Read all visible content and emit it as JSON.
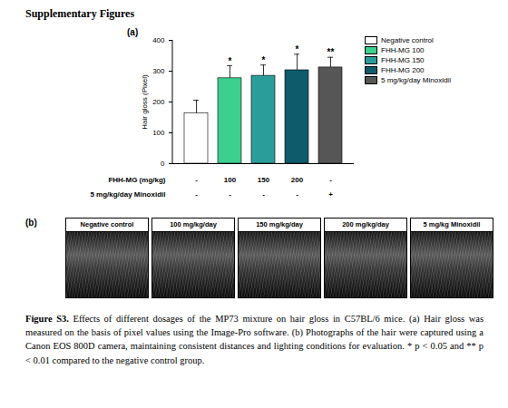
{
  "heading": "Supplementary Figures",
  "chart_data": {
    "type": "bar",
    "panel_label": "(a)",
    "ylabel": "Hair gloss (Pixel)",
    "categories": [
      "Negative control",
      "FHH-MG 100",
      "FHH-MG 150",
      "FHH-MG 200",
      "5 mg/kg/day Minoxidil"
    ],
    "values": [
      163,
      277,
      285,
      303,
      312
    ],
    "errors": [
      43,
      41,
      35,
      52,
      33
    ],
    "significance": [
      null,
      "*",
      "*",
      "*",
      "**"
    ],
    "colors": [
      "#ffffff",
      "#3ccf8e",
      "#2a9d9b",
      "#0e5b6b",
      "#565656"
    ],
    "ylim": [
      0,
      400
    ],
    "yticks": [
      0,
      100,
      200,
      300,
      400
    ],
    "legend": "top-right",
    "tick_labels": "y",
    "x_table": [
      {
        "label": "FHH-MG (mg/kg)",
        "cells": [
          "-",
          "100",
          "150",
          "200",
          "-"
        ]
      },
      {
        "label": "5 mg/kg/day Minoxidil",
        "cells": [
          "-",
          "-",
          "-",
          "-",
          "+"
        ]
      }
    ]
  },
  "panel_b": {
    "label": "(b)",
    "images": [
      "Negative control",
      "100 mg/kg/day",
      "150 mg/kg/day",
      "200 mg/kg/day",
      "5 mg/kg Minoxidil"
    ]
  },
  "caption": {
    "label": "Figure S3.",
    "text": "Effects of different dosages of the MP73 mixture on hair gloss in C57BL/6 mice. (a) Hair gloss was measured on the basis of pixel values using the Image-Pro software. (b) Photographs of the hair were captured using a Canon EOS 800D camera, maintaining consistent distances and lighting conditions for evaluation. * p < 0.05 and ** p < 0.01 compared to the negative control group."
  }
}
